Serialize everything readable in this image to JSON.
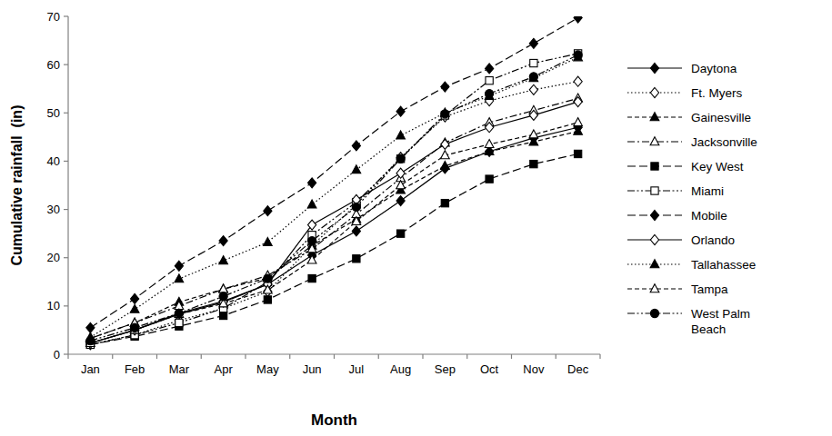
{
  "chart_data": {
    "type": "line",
    "x_label": "Month",
    "y_label": "Cumulative rainfall  (in)",
    "categories": [
      "Jan",
      "Feb",
      "Mar",
      "Apr",
      "May",
      "Jun",
      "Jul",
      "Aug",
      "Sep",
      "Oct",
      "Nov",
      "Dec"
    ],
    "ylim": [
      0,
      70
    ],
    "yticks": [
      0,
      10,
      20,
      30,
      40,
      50,
      60,
      70
    ],
    "grid": false,
    "legend": "right",
    "series": [
      {
        "name": "Daytona",
        "color": "#000000",
        "marker": "diamond",
        "line_style": "solid",
        "values": [
          2.3,
          5.0,
          8.5,
          11.0,
          14.5,
          20.5,
          25.5,
          31.8,
          38.5,
          42.0,
          44.8,
          47.0
        ]
      },
      {
        "name": "Ft. Myers",
        "color": "#000000",
        "marker": "diamond-open",
        "line_style": "dotted",
        "values": [
          2.0,
          4.0,
          7.0,
          9.5,
          13.0,
          22.5,
          31.0,
          40.8,
          49.2,
          52.5,
          54.8,
          56.5
        ]
      },
      {
        "name": "Gainesville",
        "color": "#000000",
        "marker": "triangle",
        "line_style": "dashed",
        "values": [
          3.3,
          6.5,
          10.8,
          13.5,
          15.8,
          22.5,
          28.0,
          34.0,
          39.0,
          42.0,
          44.0,
          46.2
        ]
      },
      {
        "name": "Jacksonville",
        "color": "#000000",
        "marker": "triangle-open",
        "line_style": "dash-dot",
        "values": [
          3.3,
          6.5,
          10.0,
          13.5,
          16.3,
          21.8,
          29.0,
          36.5,
          43.8,
          48.0,
          50.5,
          53.0
        ]
      },
      {
        "name": "Key West",
        "color": "#000000",
        "marker": "square",
        "line_style": "long-dash",
        "values": [
          2.0,
          3.7,
          5.8,
          8.0,
          11.3,
          15.7,
          19.8,
          25.0,
          31.3,
          36.3,
          39.4,
          41.5
        ]
      },
      {
        "name": "Miami",
        "color": "#000000",
        "marker": "square-open",
        "line_style": "dash-dot-dot",
        "values": [
          2.0,
          4.0,
          6.5,
          9.5,
          15.0,
          24.7,
          31.5,
          40.5,
          49.5,
          56.7,
          60.3,
          62.3
        ]
      },
      {
        "name": "Mobile",
        "color": "#000000",
        "marker": "diamond",
        "line_style": "long-dash",
        "values": [
          5.5,
          11.5,
          18.3,
          23.5,
          29.7,
          35.5,
          43.2,
          50.3,
          55.4,
          59.2,
          64.4,
          69.7
        ]
      },
      {
        "name": "Orlando",
        "color": "#000000",
        "marker": "diamond-open",
        "line_style": "solid",
        "values": [
          2.3,
          5.0,
          8.3,
          10.8,
          14.5,
          26.8,
          32.0,
          37.5,
          43.5,
          47.0,
          49.5,
          52.3
        ]
      },
      {
        "name": "Tallahassee",
        "color": "#000000",
        "marker": "triangle",
        "line_style": "dotted",
        "values": [
          3.5,
          9.3,
          15.6,
          19.4,
          23.2,
          31.0,
          38.2,
          45.3,
          50.0,
          53.5,
          57.2,
          61.5
        ]
      },
      {
        "name": "Tampa",
        "color": "#000000",
        "marker": "triangle-open",
        "line_style": "dashed",
        "values": [
          2.3,
          5.0,
          8.3,
          10.5,
          13.3,
          19.5,
          27.5,
          35.0,
          41.2,
          43.5,
          45.5,
          48.0
        ]
      },
      {
        "name": "West Palm Beach",
        "color": "#000000",
        "marker": "circle",
        "line_style": "dash-dot-dot",
        "values": [
          2.8,
          5.5,
          8.5,
          12.0,
          15.7,
          23.5,
          30.5,
          40.5,
          49.8,
          54.0,
          57.5,
          62.0
        ]
      }
    ]
  }
}
